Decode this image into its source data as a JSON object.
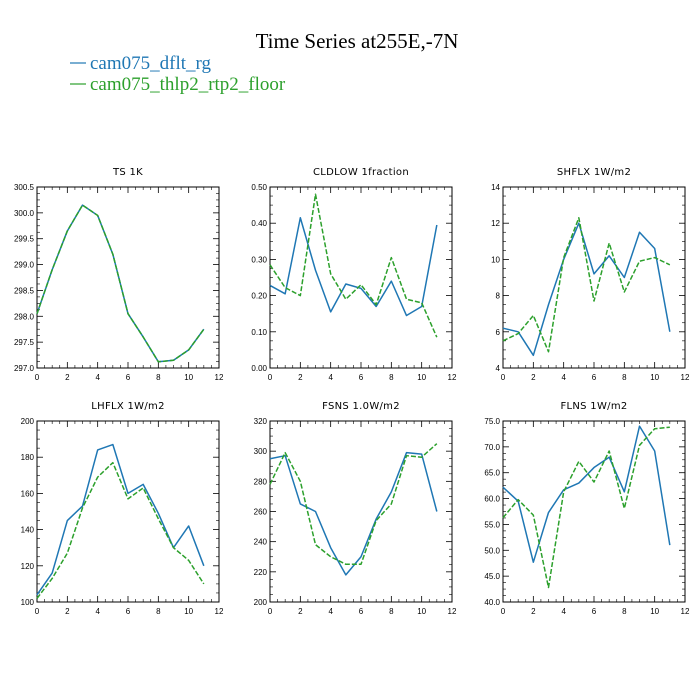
{
  "figure": {
    "title": "Time Series at255E,-7N",
    "legend": [
      {
        "name": "cam075_dflt_rg",
        "color": "#1f77b4",
        "dash": false
      },
      {
        "name": "cam075_thlp2_rtp2_floor",
        "color": "#2ca02c",
        "dash": true
      }
    ]
  },
  "chart_data": [
    {
      "type": "line",
      "title": "TS  1K",
      "x": [
        0,
        1,
        2,
        3,
        4,
        5,
        6,
        7,
        8,
        9,
        10,
        11
      ],
      "xlim": [
        0,
        12
      ],
      "xticks": [
        "0",
        "2",
        "4",
        "6",
        "8",
        "10",
        "12"
      ],
      "ylim": [
        297.0,
        300.5
      ],
      "yticks": [
        "297.0",
        "297.5",
        "298.0",
        "298.5",
        "299.0",
        "299.5",
        "300.0",
        "300.5"
      ],
      "series": [
        {
          "name": "cam075_dflt_rg",
          "values": [
            298.05,
            298.9,
            299.65,
            300.15,
            299.95,
            299.2,
            298.05,
            297.6,
            297.12,
            297.15,
            297.35,
            297.75
          ]
        },
        {
          "name": "cam075_thlp2_rtp2_floor",
          "values": [
            298.05,
            298.9,
            299.65,
            300.15,
            299.95,
            299.2,
            298.05,
            297.6,
            297.12,
            297.15,
            297.35,
            297.75
          ]
        }
      ]
    },
    {
      "type": "line",
      "title": "CLDLOW  1fraction",
      "x": [
        0,
        1,
        2,
        3,
        4,
        5,
        6,
        7,
        8,
        9,
        10,
        11
      ],
      "xlim": [
        0,
        12
      ],
      "xticks": [
        "0",
        "2",
        "4",
        "6",
        "8",
        "10",
        "12"
      ],
      "ylim": [
        0.0,
        0.5
      ],
      "yticks": [
        "0.00",
        "0.10",
        "0.20",
        "0.30",
        "0.40",
        "0.50"
      ],
      "series": [
        {
          "name": "cam075_dflt_rg",
          "values": [
            0.228,
            0.205,
            0.415,
            0.27,
            0.155,
            0.232,
            0.22,
            0.17,
            0.24,
            0.145,
            0.17,
            0.395
          ]
        },
        {
          "name": "cam075_thlp2_rtp2_floor",
          "values": [
            0.285,
            0.222,
            0.2,
            0.48,
            0.26,
            0.19,
            0.23,
            0.175,
            0.305,
            0.19,
            0.18,
            0.085
          ]
        }
      ]
    },
    {
      "type": "line",
      "title": "SHFLX  1W/m2",
      "x": [
        0,
        1,
        2,
        3,
        4,
        5,
        6,
        7,
        8,
        9,
        10,
        11
      ],
      "xlim": [
        0,
        12
      ],
      "xticks": [
        "0",
        "2",
        "4",
        "6",
        "8",
        "10",
        "12"
      ],
      "ylim": [
        4,
        14
      ],
      "yticks": [
        "4",
        "6",
        "8",
        "10",
        "12",
        "14"
      ],
      "series": [
        {
          "name": "cam075_dflt_rg",
          "values": [
            6.2,
            6.0,
            4.7,
            7.5,
            10.0,
            12.0,
            9.2,
            10.2,
            9.0,
            11.5,
            10.6,
            6.0
          ]
        },
        {
          "name": "cam075_thlp2_rtp2_floor",
          "values": [
            5.5,
            5.9,
            6.9,
            4.9,
            10.1,
            12.3,
            7.7,
            10.9,
            8.2,
            9.9,
            10.1,
            9.7
          ]
        }
      ]
    },
    {
      "type": "line",
      "title": "LHFLX  1W/m2",
      "x": [
        0,
        1,
        2,
        3,
        4,
        5,
        6,
        7,
        8,
        9,
        10,
        11
      ],
      "xlim": [
        0,
        12
      ],
      "xticks": [
        "0",
        "2",
        "4",
        "6",
        "8",
        "10",
        "12"
      ],
      "ylim": [
        100,
        200
      ],
      "yticks": [
        "100",
        "120",
        "140",
        "160",
        "180",
        "200"
      ],
      "series": [
        {
          "name": "cam075_dflt_rg",
          "values": [
            104,
            116,
            145,
            153,
            184,
            187,
            160,
            165,
            149,
            130,
            142,
            120
          ]
        },
        {
          "name": "cam075_thlp2_rtp2_floor",
          "values": [
            102,
            113,
            127,
            152,
            169,
            177,
            157,
            163,
            146,
            130,
            123,
            110
          ]
        }
      ]
    },
    {
      "type": "line",
      "title": "FSNS  1.0W/m2",
      "x": [
        0,
        1,
        2,
        3,
        4,
        5,
        6,
        7,
        8,
        9,
        10,
        11
      ],
      "xlim": [
        0,
        12
      ],
      "xticks": [
        "0",
        "2",
        "4",
        "6",
        "8",
        "10",
        "12"
      ],
      "ylim": [
        200,
        320
      ],
      "yticks": [
        "200",
        "220",
        "240",
        "260",
        "280",
        "300",
        "320"
      ],
      "series": [
        {
          "name": "cam075_dflt_rg",
          "values": [
            295,
            297,
            265,
            260,
            236,
            218,
            230,
            255,
            273,
            299,
            298,
            260
          ]
        },
        {
          "name": "cam075_thlp2_rtp2_floor",
          "values": [
            278,
            299,
            280,
            238,
            230,
            225,
            225,
            254,
            265,
            297,
            296,
            305
          ]
        }
      ]
    },
    {
      "type": "line",
      "title": "FLNS  1W/m2",
      "x": [
        0,
        1,
        2,
        3,
        4,
        5,
        6,
        7,
        8,
        9,
        10,
        11
      ],
      "xlim": [
        0,
        12
      ],
      "xticks": [
        "0",
        "2",
        "4",
        "6",
        "8",
        "10",
        "12"
      ],
      "ylim": [
        40.0,
        75.0
      ],
      "yticks": [
        "40.0",
        "45.0",
        "50.0",
        "55.0",
        "60.0",
        "65.0",
        "70.0",
        "75.0"
      ],
      "series": [
        {
          "name": "cam075_dflt_rg",
          "values": [
            62.2,
            59.5,
            47.7,
            57.3,
            61.7,
            63.0,
            66.0,
            68.0,
            61.3,
            74.0,
            69.2,
            51.0
          ]
        },
        {
          "name": "cam075_thlp2_rtp2_floor",
          "values": [
            56.3,
            59.8,
            56.8,
            42.8,
            61.3,
            67.2,
            63.2,
            69.2,
            58.1,
            70.3,
            73.5,
            73.8
          ]
        }
      ]
    }
  ]
}
